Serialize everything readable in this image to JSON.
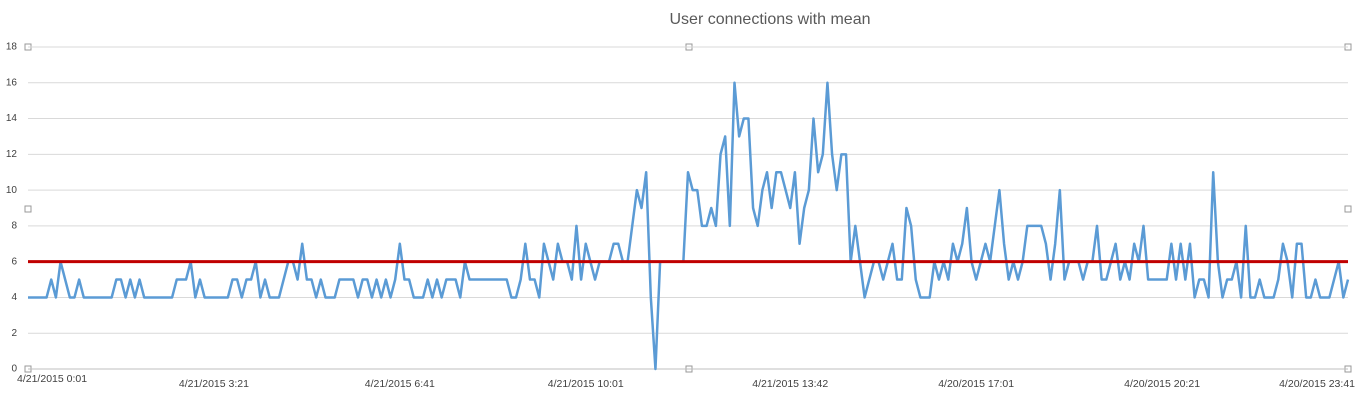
{
  "chart_data": {
    "type": "line",
    "title": "User connections with mean",
    "categories": [
      "4/21/2015 0:01",
      null,
      null,
      null,
      null,
      null,
      null,
      null,
      null,
      null,
      null,
      null,
      null,
      null,
      null,
      null,
      null,
      null,
      null,
      null,
      null,
      null,
      null,
      null,
      null,
      null,
      null,
      null,
      null,
      null,
      null,
      null,
      null,
      null,
      null,
      null,
      null,
      null,
      null,
      null,
      "4/21/2015 3:21",
      null,
      null,
      null,
      null,
      null,
      null,
      null,
      null,
      null,
      null,
      null,
      null,
      null,
      null,
      null,
      null,
      null,
      null,
      null,
      null,
      null,
      null,
      null,
      null,
      null,
      null,
      null,
      null,
      null,
      null,
      null,
      null,
      null,
      null,
      null,
      null,
      null,
      null,
      null,
      "4/21/2015 6:41",
      null,
      null,
      null,
      null,
      null,
      null,
      null,
      null,
      null,
      null,
      null,
      null,
      null,
      null,
      null,
      null,
      null,
      null,
      null,
      null,
      null,
      null,
      null,
      null,
      null,
      null,
      null,
      null,
      null,
      null,
      null,
      null,
      null,
      null,
      null,
      null,
      null,
      null,
      null,
      "4/21/2015 10:01",
      null,
      null,
      null,
      null,
      null,
      null,
      null,
      null,
      null,
      null,
      null,
      null,
      null,
      null,
      null,
      null,
      null,
      null,
      null,
      null,
      null,
      null,
      null,
      null,
      null,
      null,
      null,
      null,
      null,
      null,
      null,
      null,
      null,
      null,
      null,
      null,
      null,
      null,
      null,
      null,
      null,
      null,
      null,
      "4/21/2015 13:42",
      null,
      null,
      null,
      null,
      null,
      null,
      null,
      null,
      null,
      null,
      null,
      null,
      null,
      null,
      null,
      null,
      null,
      null,
      null,
      null,
      null,
      null,
      null,
      null,
      null,
      null,
      null,
      null,
      null,
      null,
      null,
      null,
      null,
      null,
      null,
      null,
      null,
      null,
      null,
      "4/20/2015 17:01",
      null,
      null,
      null,
      null,
      null,
      null,
      null,
      null,
      null,
      null,
      null,
      null,
      null,
      null,
      null,
      null,
      null,
      null,
      null,
      null,
      null,
      null,
      null,
      null,
      null,
      null,
      null,
      null,
      null,
      null,
      null,
      null,
      null,
      null,
      null,
      null,
      null,
      null,
      null,
      "4/20/2015 20:21",
      null,
      null,
      null,
      null,
      null,
      null,
      null,
      null,
      null,
      null,
      null,
      null,
      null,
      null,
      null,
      null,
      null,
      null,
      null,
      null,
      null,
      null,
      null,
      null,
      null,
      null,
      null,
      null,
      null,
      null,
      null,
      null,
      null,
      null,
      null,
      null,
      null,
      null,
      null,
      "4/20/2015 23:41"
    ],
    "series": [
      {
        "color": "#5b9bd5",
        "values": [
          4,
          4,
          4,
          4,
          4,
          5,
          4,
          6,
          5,
          4,
          4,
          5,
          4,
          4,
          4,
          4,
          4,
          4,
          4,
          5,
          5,
          4,
          5,
          4,
          5,
          4,
          4,
          4,
          4,
          4,
          4,
          4,
          5,
          5,
          5,
          6,
          4,
          5,
          4,
          4,
          4,
          4,
          4,
          4,
          5,
          5,
          4,
          5,
          5,
          6,
          4,
          5,
          4,
          4,
          4,
          5,
          6,
          6,
          5,
          7,
          5,
          5,
          4,
          5,
          4,
          4,
          4,
          5,
          5,
          5,
          5,
          4,
          5,
          5,
          4,
          5,
          4,
          5,
          4,
          5,
          7,
          5,
          5,
          4,
          4,
          4,
          5,
          4,
          5,
          4,
          5,
          5,
          5,
          4,
          6,
          5,
          5,
          5,
          5,
          5,
          5,
          5,
          5,
          5,
          4,
          4,
          5,
          7,
          5,
          5,
          4,
          7,
          6,
          5,
          7,
          6,
          6,
          5,
          8,
          5,
          7,
          6,
          5,
          6,
          6,
          6,
          7,
          7,
          6,
          6,
          8,
          10,
          9,
          11,
          4,
          0,
          6,
          null,
          null,
          null,
          null,
          6,
          11,
          10,
          10,
          8,
          8,
          9,
          8,
          12,
          13,
          8,
          16,
          13,
          14,
          14,
          9,
          8,
          10,
          11,
          9,
          11,
          11,
          10,
          9,
          11,
          7,
          9,
          10,
          14,
          11,
          12,
          16,
          12,
          10,
          12,
          12,
          6,
          8,
          6,
          4,
          5,
          6,
          6,
          5,
          6,
          7,
          5,
          5,
          9,
          8,
          5,
          4,
          4,
          4,
          6,
          5,
          6,
          5,
          7,
          6,
          7,
          9,
          6,
          5,
          6,
          7,
          6,
          8,
          10,
          7,
          5,
          6,
          5,
          6,
          8,
          8,
          8,
          8,
          7,
          5,
          7,
          10,
          5,
          6,
          6,
          6,
          5,
          6,
          6,
          8,
          5,
          5,
          6,
          7,
          5,
          6,
          5,
          7,
          6,
          8,
          5,
          5,
          5,
          5,
          5,
          7,
          5,
          7,
          5,
          7,
          4,
          5,
          5,
          4,
          11,
          6,
          4,
          5,
          5,
          6,
          4,
          8,
          4,
          4,
          5,
          4,
          4,
          4,
          5,
          7,
          6,
          4,
          7,
          7,
          4,
          4,
          5,
          4,
          4,
          4,
          5,
          6,
          4,
          5
        ]
      }
    ],
    "mean_line": {
      "value": 6,
      "color": "#c00000"
    },
    "ylim": [
      0,
      18
    ],
    "yticks": [
      0,
      2,
      4,
      6,
      8,
      10,
      12,
      14,
      16,
      18
    ],
    "grid": true
  }
}
